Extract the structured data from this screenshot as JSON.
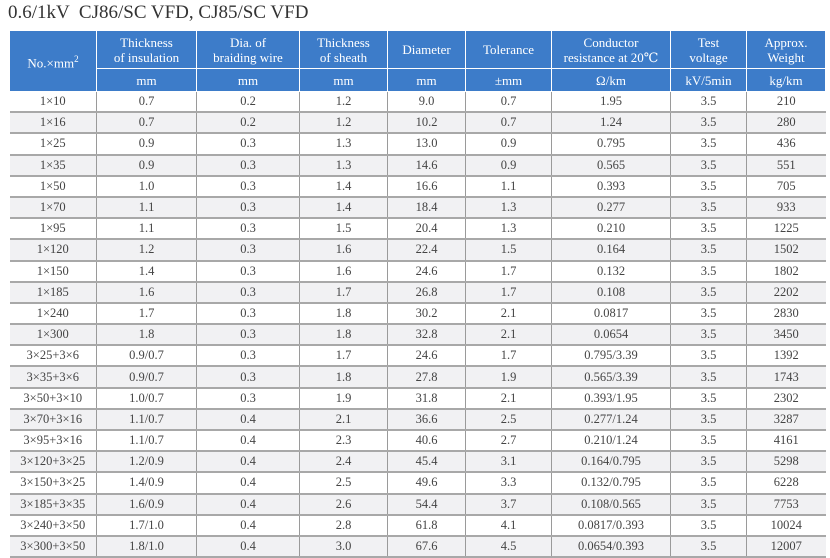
{
  "title": "0.6/1kV  CJ86/SC VFD, CJ85/SC VFD",
  "header": {
    "col0": "No.×mm",
    "col0_sup": "2",
    "labels": [
      "Thickness\nof insulation",
      "Dia. of\nbraiding wire",
      "Thickness\nof sheath",
      "Diameter",
      "Tolerance",
      "Conductor\nresistance at 20℃",
      "Test\nvoltage",
      "Approx.\nWeight"
    ],
    "units": [
      "mm",
      "mm",
      "mm",
      "mm",
      "±mm",
      "Ω/km",
      "kV/5min",
      "kg/km"
    ]
  },
  "colors": {
    "header_bg": "#3d7cc9",
    "alt_row": "#f1f1f3"
  },
  "rows": [
    [
      "1×10",
      "0.7",
      "0.2",
      "1.2",
      "9.0",
      "0.7",
      "1.95",
      "3.5",
      "210"
    ],
    [
      "1×16",
      "0.7",
      "0.2",
      "1.2",
      "10.2",
      "0.7",
      "1.24",
      "3.5",
      "280"
    ],
    [
      "1×25",
      "0.9",
      "0.3",
      "1.3",
      "13.0",
      "0.9",
      "0.795",
      "3.5",
      "436"
    ],
    [
      "1×35",
      "0.9",
      "0.3",
      "1.3",
      "14.6",
      "0.9",
      "0.565",
      "3.5",
      "551"
    ],
    [
      "1×50",
      "1.0",
      "0.3",
      "1.4",
      "16.6",
      "1.1",
      "0.393",
      "3.5",
      "705"
    ],
    [
      "1×70",
      "1.1",
      "0.3",
      "1.4",
      "18.4",
      "1.3",
      "0.277",
      "3.5",
      "933"
    ],
    [
      "1×95",
      "1.1",
      "0.3",
      "1.5",
      "20.4",
      "1.3",
      "0.210",
      "3.5",
      "1225"
    ],
    [
      "1×120",
      "1.2",
      "0.3",
      "1.6",
      "22.4",
      "1.5",
      "0.164",
      "3.5",
      "1502"
    ],
    [
      "1×150",
      "1.4",
      "0.3",
      "1.6",
      "24.6",
      "1.7",
      "0.132",
      "3.5",
      "1802"
    ],
    [
      "1×185",
      "1.6",
      "0.3",
      "1.7",
      "26.8",
      "1.7",
      "0.108",
      "3.5",
      "2202"
    ],
    [
      "1×240",
      "1.7",
      "0.3",
      "1.8",
      "30.2",
      "2.1",
      "0.0817",
      "3.5",
      "2830"
    ],
    [
      "1×300",
      "1.8",
      "0.3",
      "1.8",
      "32.8",
      "2.1",
      "0.0654",
      "3.5",
      "3450"
    ],
    [
      "3×25+3×6",
      "0.9/0.7",
      "0.3",
      "1.7",
      "24.6",
      "1.7",
      "0.795/3.39",
      "3.5",
      "1392"
    ],
    [
      "3×35+3×6",
      "0.9/0.7",
      "0.3",
      "1.8",
      "27.8",
      "1.9",
      "0.565/3.39",
      "3.5",
      "1743"
    ],
    [
      "3×50+3×10",
      "1.0/0.7",
      "0.3",
      "1.9",
      "31.8",
      "2.1",
      "0.393/1.95",
      "3.5",
      "2302"
    ],
    [
      "3×70+3×16",
      "1.1/0.7",
      "0.4",
      "2.1",
      "36.6",
      "2.5",
      "0.277/1.24",
      "3.5",
      "3287"
    ],
    [
      "3×95+3×16",
      "1.1/0.7",
      "0.4",
      "2.3",
      "40.6",
      "2.7",
      "0.210/1.24",
      "3.5",
      "4161"
    ],
    [
      "3×120+3×25",
      "1.2/0.9",
      "0.4",
      "2.4",
      "45.4",
      "3.1",
      "0.164/0.795",
      "3.5",
      "5298"
    ],
    [
      "3×150+3×25",
      "1.4/0.9",
      "0.4",
      "2.5",
      "49.6",
      "3.3",
      "0.132/0.795",
      "3.5",
      "6228"
    ],
    [
      "3×185+3×35",
      "1.6/0.9",
      "0.4",
      "2.6",
      "54.4",
      "3.7",
      "0.108/0.565",
      "3.5",
      "7753"
    ],
    [
      "3×240+3×50",
      "1.7/1.0",
      "0.4",
      "2.8",
      "61.8",
      "4.1",
      "0.0817/0.393",
      "3.5",
      "10024"
    ],
    [
      "3×300+3×50",
      "1.8/1.0",
      "0.4",
      "3.0",
      "67.6",
      "4.5",
      "0.0654/0.393",
      "3.5",
      "12007"
    ]
  ]
}
